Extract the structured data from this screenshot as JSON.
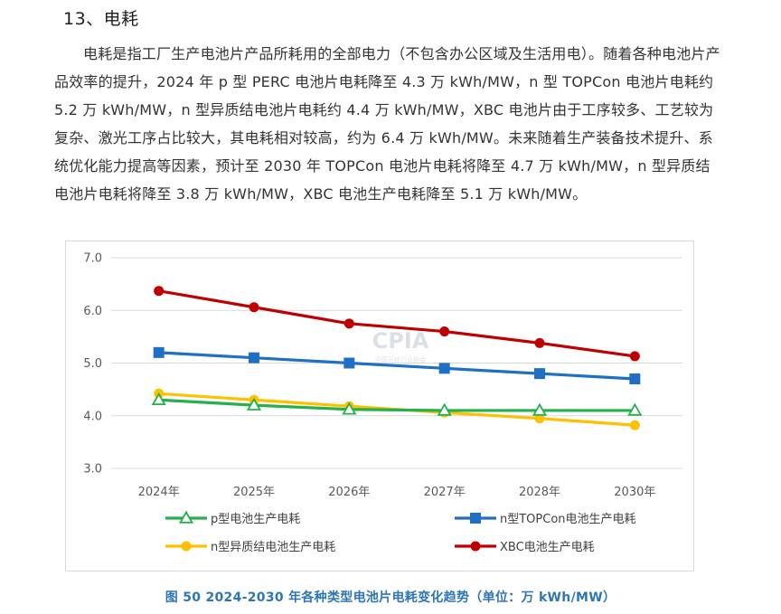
{
  "document": {
    "heading": "13、电耗",
    "paragraph": "电耗是指工厂生产电池片产品所耗用的全部电力（不包含办公区域及生活用电）。随着各种电池片产品效率的提升，2024 年 p 型 PERC 电池片电耗降至 4.3 万 kWh/MW，n 型 TOPCon 电池片电耗约 5.2 万 kWh/MW，n 型异质结电池片电耗约 4.4 万 kWh/MW，XBC 电池片由于工序较多、工艺较为复杂、激光工序占比较大，其电耗相对较高，约为 6.4 万 kWh/MW。未来随着生产装备技术提升、系统优化能力提高等因素，预计至 2030 年 TOPCon 电池片电耗将降至 4.7 万 kWh/MW，n 型异质结电池片电耗将降至 3.8 万 kWh/MW，XBC 电池生产电耗降至 5.1 万 kWh/MW。",
    "caption": "图 50   2024-2030 年各种类型电池片电耗变化趋势（单位：万 kWh/MW）"
  },
  "chart_data": {
    "type": "line",
    "categories": [
      "2024年",
      "2025年",
      "2026年",
      "2027年",
      "2028年",
      "2030年"
    ],
    "ylim": [
      3.0,
      7.0
    ],
    "yticks": [
      "3.0",
      "4.0",
      "5.0",
      "6.0",
      "7.0"
    ],
    "grid": true,
    "legend_position": "bottom",
    "watermark": {
      "text": "CPIA",
      "subtext": "中国光伏行业协会"
    },
    "series": [
      {
        "name": "p型电池生产电耗",
        "color": "#22b14c",
        "marker": "triangle-open",
        "values": [
          4.3,
          4.2,
          4.12,
          4.1,
          4.1,
          4.1
        ]
      },
      {
        "name": "n型TOPCon电池生产电耗",
        "color": "#1f6fc5",
        "marker": "square",
        "values": [
          5.2,
          5.1,
          5.0,
          4.9,
          4.8,
          4.7
        ]
      },
      {
        "name": "n型异质结电池生产电耗",
        "color": "#ffc000",
        "marker": "circle",
        "values": [
          4.42,
          4.3,
          4.18,
          4.06,
          3.95,
          3.82
        ]
      },
      {
        "name": "XBC电池生产电耗",
        "color": "#c00000",
        "marker": "circle",
        "values": [
          6.37,
          6.06,
          5.75,
          5.6,
          5.38,
          5.13
        ]
      }
    ]
  }
}
